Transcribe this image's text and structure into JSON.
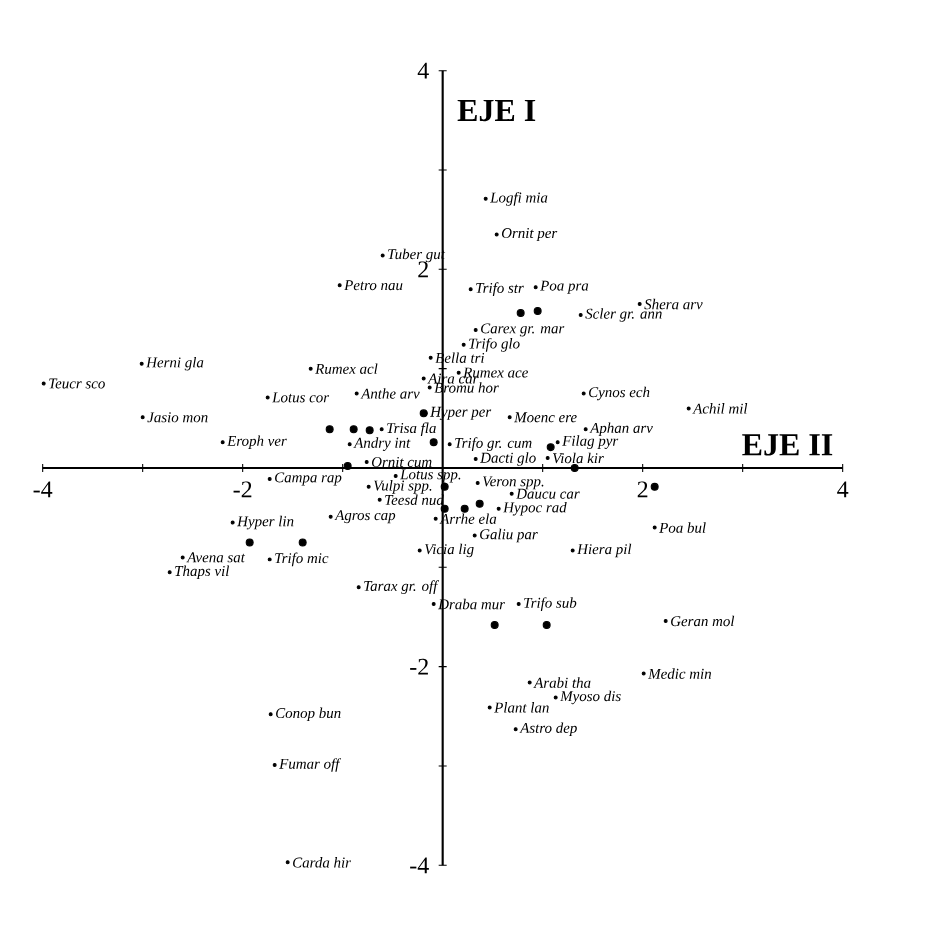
{
  "chart_data": {
    "type": "scatter",
    "xlabel": "EJE II",
    "ylabel": "EJE I",
    "xlim": [
      -4,
      4
    ],
    "ylim": [
      -4,
      4
    ],
    "xticks": [
      -4,
      {
        "value": -3,
        "label": null
      },
      -2,
      {
        "value": -1,
        "label": null
      },
      {
        "value": 1,
        "label": null
      },
      2,
      {
        "value": 3,
        "label": null
      },
      4
    ],
    "yticks": [
      -4,
      {
        "value": -3,
        "label": null
      },
      -2,
      {
        "value": -1,
        "label": null
      },
      {
        "value": 1,
        "label": null
      },
      2,
      {
        "value": 3,
        "label": null
      },
      4
    ],
    "marker": "circle",
    "series": [
      {
        "color": "#000000",
        "x": [
          0.78,
          0.95,
          -1.13,
          -0.89,
          -0.73,
          -0.19,
          -0.09,
          1.08,
          -0.95,
          1.32,
          0.02,
          0.02,
          0.37,
          0.22,
          2.12,
          -1.93,
          -1.4,
          0.52,
          1.04
        ],
        "values": [
          1.56,
          1.58,
          0.39,
          0.39,
          0.38,
          0.55,
          0.26,
          0.21,
          0.02,
          0.0,
          -0.19,
          -0.41,
          -0.36,
          -0.41,
          -0.19,
          -0.75,
          -0.75,
          -1.58,
          -1.58
        ]
      },
      {
        "color": "#000000",
        "x": [
          0.43,
          0.54,
          -0.6,
          -1.03,
          0.28,
          0.93,
          1.97,
          1.38,
          0.33,
          0.21,
          -0.12,
          0.16,
          -0.19,
          -1.32,
          -0.13,
          -0.86,
          -1.75,
          1.41,
          2.46,
          -0.17,
          0.67,
          1.43,
          -0.61,
          1.15,
          0.07,
          -0.93,
          0.33,
          -0.76,
          1.05,
          -0.47,
          0.35,
          -0.74,
          -0.63,
          0.69,
          0.56,
          -0.07,
          -1.73,
          -1.12,
          0.32,
          -0.23,
          1.3,
          2.12,
          -2.1,
          -1.73,
          -2.6,
          -2.73,
          -0.84,
          -0.09,
          0.76,
          2.23,
          2.01,
          0.87,
          1.13,
          0.47,
          0.73,
          -1.72,
          -1.68,
          -1.55,
          -3.99,
          -3.01,
          -3.0,
          -2.2
        ],
        "values": [
          2.71,
          2.35,
          2.14,
          1.84,
          1.8,
          1.82,
          1.65,
          1.54,
          1.39,
          1.24,
          1.11,
          0.96,
          0.9,
          1.0,
          0.81,
          0.75,
          0.71,
          0.75,
          0.6,
          0.55,
          0.51,
          0.39,
          0.39,
          0.26,
          0.24,
          0.24,
          0.09,
          0.06,
          0.1,
          -0.08,
          -0.15,
          -0.19,
          -0.32,
          -0.26,
          -0.41,
          -0.51,
          -0.11,
          -0.49,
          -0.68,
          -0.83,
          -0.83,
          -0.6,
          -0.55,
          -0.92,
          -0.9,
          -1.05,
          -1.2,
          -1.37,
          -1.37,
          -1.54,
          -2.07,
          -2.16,
          -2.31,
          -2.41,
          -2.63,
          -2.48,
          -2.99,
          -3.97,
          0.85,
          1.05,
          0.51,
          0.26
        ]
      }
    ],
    "annotations": [
      {
        "text": "Logfi mia",
        "x": 0.43,
        "y": 2.71
      },
      {
        "text": "Ornit per",
        "x": 0.54,
        "y": 2.35
      },
      {
        "text": "Tuber gut",
        "x": -0.6,
        "y": 2.14
      },
      {
        "text": "Petro nau",
        "x": -1.03,
        "y": 1.84
      },
      {
        "text": "Trifo str",
        "x": 0.28,
        "y": 1.8
      },
      {
        "text": "Poa pra",
        "x": 0.93,
        "y": 1.82
      },
      {
        "text": "Shera arv",
        "x": 1.97,
        "y": 1.65
      },
      {
        "text": "Scler gr. ann",
        "x": 1.38,
        "y": 1.54
      },
      {
        "text": "Carex gr. mar",
        "x": 0.33,
        "y": 1.39
      },
      {
        "text": "Trifo glo",
        "x": 0.21,
        "y": 1.24
      },
      {
        "text": "Bella tri",
        "x": -0.12,
        "y": 1.11
      },
      {
        "text": "Rumex ace",
        "x": 0.16,
        "y": 0.96
      },
      {
        "text": "Aira car",
        "x": -0.19,
        "y": 0.9
      },
      {
        "text": "Rumex acl",
        "x": -1.32,
        "y": 1.0
      },
      {
        "text": "Bromu hor",
        "x": -0.13,
        "y": 0.81
      },
      {
        "text": "Anthe arv",
        "x": -0.86,
        "y": 0.75
      },
      {
        "text": "Lotus cor",
        "x": -1.75,
        "y": 0.71
      },
      {
        "text": "Cynos ech",
        "x": 1.41,
        "y": 0.75
      },
      {
        "text": "Achil mil",
        "x": 2.46,
        "y": 0.6
      },
      {
        "text": "Hyper per",
        "x": -0.17,
        "y": 0.55
      },
      {
        "text": "Moenc ere",
        "x": 0.67,
        "y": 0.51
      },
      {
        "text": "Aphan arv",
        "x": 1.43,
        "y": 0.39
      },
      {
        "text": "Trisa fla",
        "x": -0.61,
        "y": 0.39
      },
      {
        "text": "Filag pyr",
        "x": 1.15,
        "y": 0.26
      },
      {
        "text": "Trifo gr. cum",
        "x": 0.07,
        "y": 0.24
      },
      {
        "text": "Andry int",
        "x": -0.93,
        "y": 0.24
      },
      {
        "text": "Dacti glo",
        "x": 0.33,
        "y": 0.09
      },
      {
        "text": "Ornit cum",
        "x": -0.76,
        "y": 0.06
      },
      {
        "text": "Viola kir",
        "x": 1.05,
        "y": 0.1
      },
      {
        "text": "Lotus spp.",
        "x": -0.47,
        "y": -0.08
      },
      {
        "text": "Veron spp.",
        "x": 0.35,
        "y": -0.15
      },
      {
        "text": "Vulpi spp.",
        "x": -0.74,
        "y": -0.19
      },
      {
        "text": "Teesd nud",
        "x": -0.63,
        "y": -0.32
      },
      {
        "text": "Daucu car",
        "x": 0.69,
        "y": -0.26
      },
      {
        "text": "Hypoc rad",
        "x": 0.56,
        "y": -0.41
      },
      {
        "text": "Arrhe ela",
        "x": -0.07,
        "y": -0.51
      },
      {
        "text": "Campa rap",
        "x": -1.73,
        "y": -0.11
      },
      {
        "text": "Agros cap",
        "x": -1.12,
        "y": -0.49
      },
      {
        "text": "Galiu par",
        "x": 0.32,
        "y": -0.68
      },
      {
        "text": "Vicia lig",
        "x": -0.23,
        "y": -0.83
      },
      {
        "text": "Hiera pil",
        "x": 1.3,
        "y": -0.83
      },
      {
        "text": "Poa bul",
        "x": 2.12,
        "y": -0.6
      },
      {
        "text": "Hyper lin",
        "x": -2.1,
        "y": -0.55
      },
      {
        "text": "Trifo mic",
        "x": -1.73,
        "y": -0.92
      },
      {
        "text": "Avena sat",
        "x": -2.6,
        "y": -0.9
      },
      {
        "text": "Thaps vil",
        "x": -2.73,
        "y": -1.05
      },
      {
        "text": "Tarax gr. off",
        "x": -0.84,
        "y": -1.2
      },
      {
        "text": "Draba mur",
        "x": -0.09,
        "y": -1.37
      },
      {
        "text": "Trifo sub",
        "x": 0.76,
        "y": -1.37
      },
      {
        "text": "Geran mol",
        "x": 2.23,
        "y": -1.54
      },
      {
        "text": "Medic min",
        "x": 2.01,
        "y": -2.07
      },
      {
        "text": "Arabi tha",
        "x": 0.87,
        "y": -2.16
      },
      {
        "text": "Myoso dis",
        "x": 1.13,
        "y": -2.31
      },
      {
        "text": "Plant lan",
        "x": 0.47,
        "y": -2.41
      },
      {
        "text": "Astro dep",
        "x": 0.73,
        "y": -2.63
      },
      {
        "text": "Conop bun",
        "x": -1.72,
        "y": -2.48
      },
      {
        "text": "Fumar off",
        "x": -1.68,
        "y": -2.99
      },
      {
        "text": "Carda hir",
        "x": -1.55,
        "y": -3.97
      },
      {
        "text": "Teucr sco",
        "x": -3.99,
        "y": 0.85
      },
      {
        "text": "Herni gla",
        "x": -3.01,
        "y": 1.05
      },
      {
        "text": "Jasio mon",
        "x": -3.0,
        "y": 0.51
      },
      {
        "text": "Eroph ver",
        "x": -2.2,
        "y": 0.26
      }
    ]
  }
}
